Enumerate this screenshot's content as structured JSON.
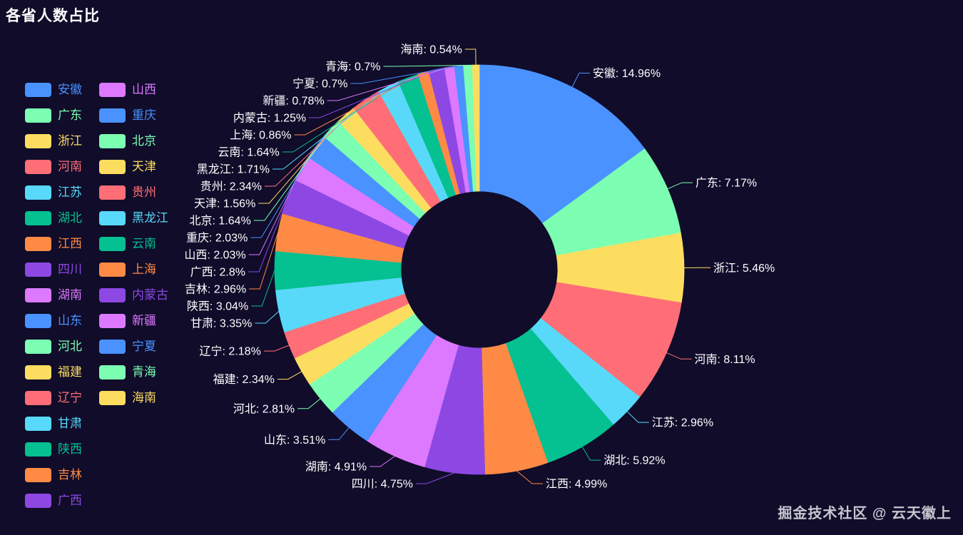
{
  "watermark": "掘金技术社区 @ 云天徽上",
  "chart_data": {
    "type": "pie",
    "subtype": "donut",
    "title": "各省人数占比",
    "unit": "%",
    "label_format": "{name}: {value}%",
    "legend_position": "left",
    "legend_columns": 2,
    "legend_column_split": 17,
    "background": "#100C2A",
    "palette": [
      "#4992ff",
      "#7cffb2",
      "#fddd60",
      "#ff6e76",
      "#58d9f9",
      "#05c091",
      "#ff8a45",
      "#8d48e3",
      "#dd79ff"
    ],
    "series": [
      {
        "name": "安徽",
        "value": 14.96
      },
      {
        "name": "广东",
        "value": 7.17
      },
      {
        "name": "浙江",
        "value": 5.46
      },
      {
        "name": "河南",
        "value": 8.11
      },
      {
        "name": "江苏",
        "value": 2.96
      },
      {
        "name": "湖北",
        "value": 5.92
      },
      {
        "name": "江西",
        "value": 4.99
      },
      {
        "name": "四川",
        "value": 4.75
      },
      {
        "name": "湖南",
        "value": 4.91
      },
      {
        "name": "山东",
        "value": 3.51
      },
      {
        "name": "河北",
        "value": 2.81
      },
      {
        "name": "福建",
        "value": 2.34
      },
      {
        "name": "辽宁",
        "value": 2.18
      },
      {
        "name": "甘肃",
        "value": 3.35
      },
      {
        "name": "陕西",
        "value": 3.04
      },
      {
        "name": "吉林",
        "value": 2.96
      },
      {
        "name": "广西",
        "value": 2.8
      },
      {
        "name": "山西",
        "value": 2.03
      },
      {
        "name": "重庆",
        "value": 2.03
      },
      {
        "name": "北京",
        "value": 1.64
      },
      {
        "name": "天津",
        "value": 1.56
      },
      {
        "name": "贵州",
        "value": 2.34
      },
      {
        "name": "黑龙江",
        "value": 1.71
      },
      {
        "name": "云南",
        "value": 1.64
      },
      {
        "name": "上海",
        "value": 0.86
      },
      {
        "name": "内蒙古",
        "value": 1.25
      },
      {
        "name": "新疆",
        "value": 0.78
      },
      {
        "name": "宁夏",
        "value": 0.7
      },
      {
        "name": "青海",
        "value": 0.7
      },
      {
        "name": "海南",
        "value": 0.54
      }
    ]
  }
}
